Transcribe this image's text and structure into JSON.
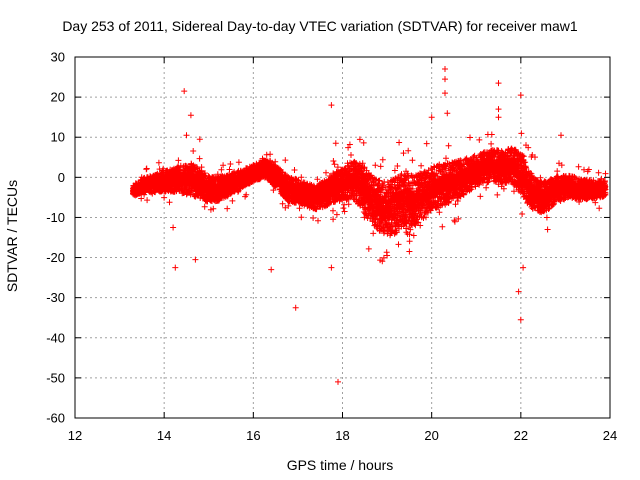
{
  "chart_data": {
    "type": "scatter",
    "title": "Day 253 of 2011, Sidereal Day-to-day VTEC variation (SDTVAR) for receiver maw1",
    "xlabel": "GPS time / hours",
    "ylabel": "SDTVAR / TECUs",
    "xlim": [
      12,
      24
    ],
    "ylim": [
      -60,
      30
    ],
    "xticks": [
      "12",
      "14",
      "16",
      "18",
      "20",
      "22",
      "24"
    ],
    "yticks": [
      "30",
      "20",
      "10",
      "0",
      "-10",
      "-20",
      "-30",
      "-40",
      "-50",
      "-60"
    ],
    "grid": true,
    "marker": "+",
    "color": "#ff0000",
    "trend": [
      [
        13.3,
        -3.5
      ],
      [
        13.5,
        -2.0
      ],
      [
        13.8,
        -1.5
      ],
      [
        14.0,
        -1.0
      ],
      [
        14.3,
        -0.5
      ],
      [
        14.6,
        -0.5
      ],
      [
        14.8,
        -1.5
      ],
      [
        15.0,
        -3.0
      ],
      [
        15.2,
        -3.0
      ],
      [
        15.5,
        -1.5
      ],
      [
        15.8,
        0.0
      ],
      [
        16.0,
        1.0
      ],
      [
        16.2,
        2.0
      ],
      [
        16.4,
        1.5
      ],
      [
        16.6,
        -1.0
      ],
      [
        16.8,
        -3.0
      ],
      [
        17.0,
        -3.5
      ],
      [
        17.2,
        -4.5
      ],
      [
        17.4,
        -5.0
      ],
      [
        17.6,
        -4.0
      ],
      [
        17.8,
        -2.5
      ],
      [
        18.0,
        -2.0
      ],
      [
        18.2,
        -0.5
      ],
      [
        18.4,
        -2.0
      ],
      [
        18.6,
        -5.0
      ],
      [
        18.8,
        -7.0
      ],
      [
        19.0,
        -8.0
      ],
      [
        19.2,
        -7.0
      ],
      [
        19.4,
        -5.0
      ],
      [
        19.6,
        -6.0
      ],
      [
        19.8,
        -4.5
      ],
      [
        20.0,
        -3.0
      ],
      [
        20.2,
        -2.0
      ],
      [
        20.4,
        -1.5
      ],
      [
        20.6,
        -0.5
      ],
      [
        20.8,
        0.5
      ],
      [
        21.0,
        1.5
      ],
      [
        21.2,
        2.5
      ],
      [
        21.4,
        3.0
      ],
      [
        21.6,
        2.5
      ],
      [
        21.8,
        3.0
      ],
      [
        22.0,
        1.0
      ],
      [
        22.2,
        -3.0
      ],
      [
        22.4,
        -5.0
      ],
      [
        22.6,
        -4.5
      ],
      [
        22.8,
        -3.0
      ],
      [
        23.0,
        -2.5
      ],
      [
        23.2,
        -2.5
      ],
      [
        23.4,
        -3.0
      ],
      [
        23.6,
        -3.0
      ],
      [
        23.8,
        -3.0
      ],
      [
        23.9,
        -2.5
      ]
    ],
    "spread": [
      [
        13.3,
        1.5
      ],
      [
        14.0,
        2.5
      ],
      [
        14.6,
        4.0
      ],
      [
        15.2,
        3.0
      ],
      [
        16.0,
        2.0
      ],
      [
        16.6,
        3.0
      ],
      [
        17.4,
        3.0
      ],
      [
        18.0,
        4.0
      ],
      [
        18.6,
        6.0
      ],
      [
        19.2,
        7.0
      ],
      [
        19.8,
        6.0
      ],
      [
        20.4,
        5.0
      ],
      [
        21.0,
        4.0
      ],
      [
        21.6,
        4.0
      ],
      [
        22.0,
        5.0
      ],
      [
        22.4,
        4.0
      ],
      [
        23.0,
        3.0
      ],
      [
        23.9,
        2.0
      ]
    ],
    "outliers": [
      [
        14.45,
        21.5
      ],
      [
        14.5,
        10.5
      ],
      [
        14.25,
        -22.5
      ],
      [
        14.7,
        -20.5
      ],
      [
        14.6,
        15.5
      ],
      [
        16.4,
        -23.0
      ],
      [
        16.95,
        -32.5
      ],
      [
        17.75,
        18.0
      ],
      [
        17.75,
        -22.5
      ],
      [
        17.9,
        -51.0
      ],
      [
        19.0,
        -19.5
      ],
      [
        19.5,
        -18.5
      ],
      [
        20.0,
        15.0
      ],
      [
        20.3,
        27.0
      ],
      [
        20.3,
        24.5
      ],
      [
        20.3,
        21.0
      ],
      [
        20.35,
        16.0
      ],
      [
        21.5,
        23.5
      ],
      [
        21.5,
        17.0
      ],
      [
        21.5,
        15.0
      ],
      [
        21.95,
        -28.5
      ],
      [
        22.0,
        -35.5
      ],
      [
        22.05,
        -22.5
      ],
      [
        22.0,
        20.5
      ],
      [
        22.9,
        10.5
      ],
      [
        14.8,
        9.5
      ],
      [
        17.85,
        8.5
      ],
      [
        14.2,
        -12.5
      ],
      [
        19.6,
        -14.5
      ],
      [
        22.6,
        -13.0
      ]
    ]
  }
}
